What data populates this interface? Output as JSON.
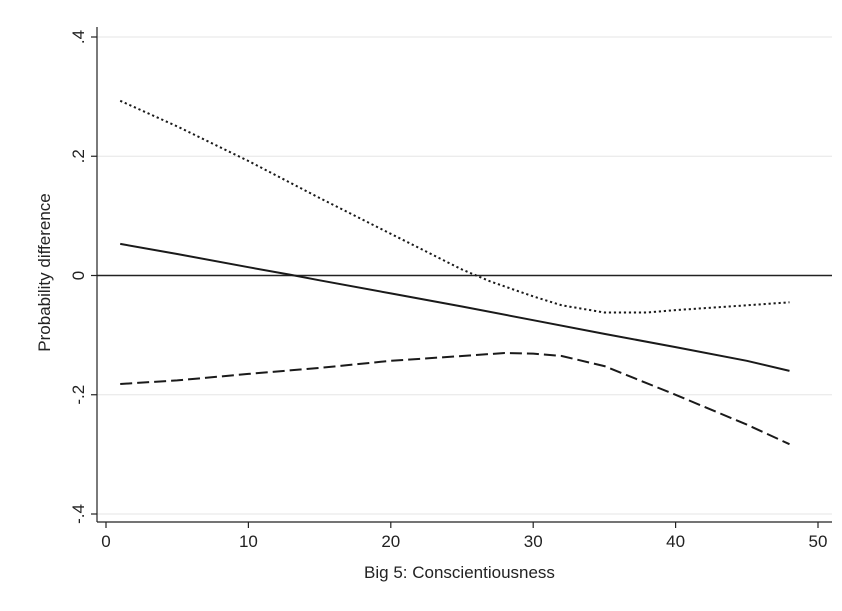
{
  "chart_data": {
    "type": "line",
    "title": "",
    "xlabel": "Big 5: Conscientiousness",
    "ylabel": "Probability difference",
    "xlim": [
      0,
      50
    ],
    "ylim": [
      -0.42,
      0.42
    ],
    "xticks": [
      0,
      10,
      20,
      30,
      40,
      50
    ],
    "xtick_labels": [
      "0",
      "10",
      "20",
      "30",
      "40",
      "50"
    ],
    "yticks": [
      -0.4,
      -0.2,
      0,
      0.2,
      0.4
    ],
    "ytick_labels": [
      "-.4",
      "-.2",
      "0",
      ".2",
      ".4"
    ],
    "grid": true,
    "reference_line_y": 0,
    "series": [
      {
        "style": "solid",
        "x": [
          1,
          5,
          10,
          13,
          15,
          20,
          25,
          30,
          35,
          40,
          45,
          48
        ],
        "y": [
          0.053,
          0.036,
          0.014,
          0.001,
          -0.008,
          -0.03,
          -0.052,
          -0.075,
          -0.098,
          -0.12,
          -0.143,
          -0.16
        ]
      },
      {
        "style": "dotted",
        "x": [
          1,
          5,
          10,
          15,
          20,
          25,
          27,
          30,
          32,
          35,
          38,
          40,
          45,
          48
        ],
        "y": [
          0.293,
          0.25,
          0.192,
          0.13,
          0.07,
          0.01,
          -0.01,
          -0.035,
          -0.05,
          -0.062,
          -0.062,
          -0.058,
          -0.05,
          -0.045
        ]
      },
      {
        "style": "dashed",
        "x": [
          1,
          5,
          10,
          15,
          20,
          25,
          28,
          30,
          32,
          35,
          40,
          45,
          48
        ],
        "y": [
          -0.182,
          -0.176,
          -0.165,
          -0.155,
          -0.143,
          -0.135,
          -0.13,
          -0.131,
          -0.135,
          -0.152,
          -0.2,
          -0.25,
          -0.283
        ]
      }
    ]
  }
}
